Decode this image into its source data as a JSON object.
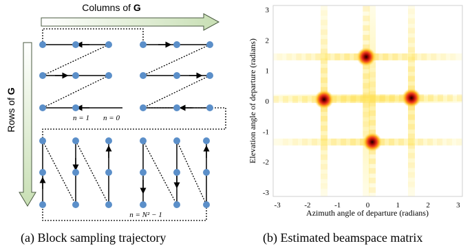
{
  "figure_a": {
    "columns_label": "Columns of ",
    "rows_label": "Rows of ",
    "matrix_symbol": "G",
    "n_one": "n = 1",
    "n_zero": "n = 0",
    "n_last": "n = N² − 1",
    "caption": "(a) Block sampling trajectory"
  },
  "figure_b": {
    "caption": "(b) Estimated beamspace matrix",
    "colormap": [
      "#ffffff",
      "#ffef6a",
      "#ffb020",
      "#e8301a",
      "#8a0000",
      "#1c0000"
    ]
  },
  "chart_data": {
    "type": "heatmap",
    "xlabel": "Azimuth angle of departure (radians)",
    "ylabel": "Elevation angle of departure (radians)",
    "xlim": [
      -3.14,
      3.14
    ],
    "ylim": [
      3.14,
      -3.14
    ],
    "x_ticks": [
      "-3",
      "-2",
      "-1",
      "0",
      "1",
      "2",
      "3"
    ],
    "y_ticks": [
      "-3",
      "-2",
      "-1",
      "0",
      "1",
      "2",
      "3"
    ],
    "y_axis_reversed": true,
    "peaks": [
      {
        "x": 0.15,
        "y": -1.35
      },
      {
        "x": -1.45,
        "y": 0.05
      },
      {
        "x": 1.45,
        "y": 0.1
      },
      {
        "x": -0.05,
        "y": 1.45
      }
    ]
  }
}
